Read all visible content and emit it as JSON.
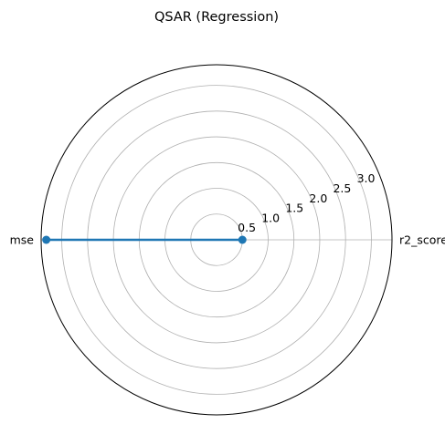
{
  "chart_data": {
    "type": "radar",
    "title": "QSAR (Regression)",
    "axes": [
      "r2_score",
      "mse"
    ],
    "radial_ticks": [
      "0.5",
      "1.0",
      "1.5",
      "2.0",
      "2.5",
      "3.0"
    ],
    "radial_tick_values": [
      0.5,
      1.0,
      1.5,
      2.0,
      2.5,
      3.0
    ],
    "rlim": [
      0,
      3.4
    ],
    "grid": true,
    "series": [
      {
        "values": [
          0.5,
          3.3
        ],
        "color": "#1f77b4"
      }
    ]
  }
}
